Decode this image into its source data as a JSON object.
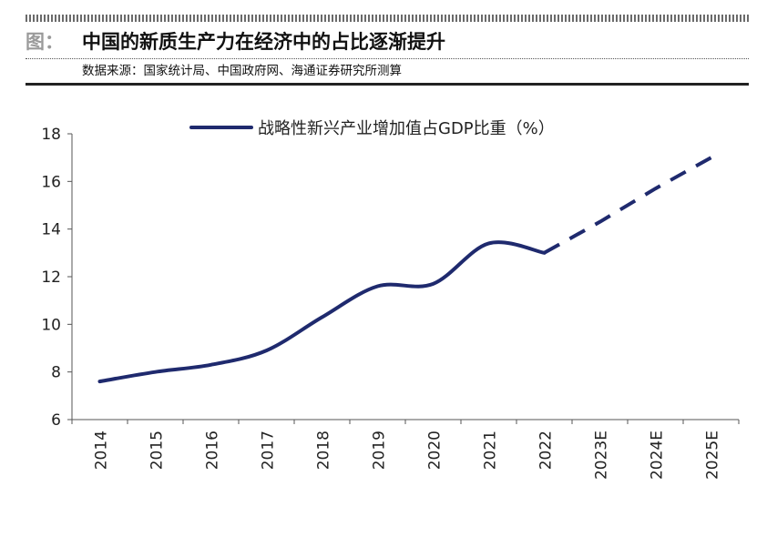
{
  "figure": {
    "label": "图：",
    "title": "中国的新质生产力在经济中的占比逐渐提升",
    "source": "数据来源：国家统计局、中国政府网、海通证券研究所测算"
  },
  "chart_data": {
    "type": "line",
    "categories": [
      "2014",
      "2015",
      "2016",
      "2017",
      "2018",
      "2019",
      "2020",
      "2021",
      "2022",
      "2023E",
      "2024E",
      "2025E"
    ],
    "series": [
      {
        "name": "战略性新兴产业增加值占GDP比重（%）",
        "color": "#1f2a6e",
        "actual_values": [
          7.6,
          8.0,
          8.3,
          8.9,
          10.3,
          11.6,
          11.7,
          13.4,
          13.0
        ],
        "projected_values": [
          13.0,
          14.3,
          15.7,
          17.0
        ],
        "projected_from_index": 8
      }
    ],
    "yticks": [
      "6",
      "8",
      "10",
      "12",
      "14",
      "16",
      "18"
    ],
    "ylim": [
      6,
      18
    ],
    "grid": false,
    "legend": "top-center"
  }
}
